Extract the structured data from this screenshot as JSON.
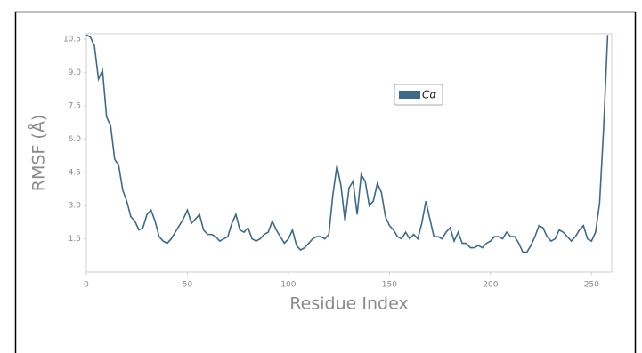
{
  "chart_data": {
    "type": "line",
    "xlabel": "Residue Index",
    "ylabel": "RMSF (Å)",
    "x": [
      0,
      2,
      4,
      6,
      8,
      10,
      12,
      14,
      16,
      18,
      20,
      22,
      24,
      26,
      28,
      30,
      32,
      34,
      36,
      38,
      40,
      42,
      44,
      46,
      48,
      50,
      52,
      54,
      56,
      58,
      60,
      62,
      64,
      66,
      68,
      70,
      72,
      74,
      76,
      78,
      80,
      82,
      84,
      86,
      88,
      90,
      92,
      94,
      96,
      98,
      100,
      102,
      104,
      106,
      108,
      110,
      112,
      114,
      116,
      118,
      120,
      122,
      124,
      126,
      128,
      130,
      132,
      134,
      136,
      138,
      140,
      142,
      144,
      146,
      148,
      150,
      152,
      154,
      156,
      158,
      160,
      162,
      164,
      166,
      168,
      170,
      172,
      174,
      176,
      178,
      180,
      182,
      184,
      186,
      188,
      190,
      192,
      194,
      196,
      198,
      200,
      202,
      204,
      206,
      208,
      210,
      212,
      214,
      216,
      218,
      220,
      222,
      224,
      226,
      228,
      230,
      232,
      234,
      236,
      238,
      240,
      242,
      244,
      246,
      248,
      250,
      252,
      254,
      256,
      258
    ],
    "series": [
      {
        "name": "Cα",
        "color": "#3d6a8a",
        "values": [
          10.7,
          10.6,
          10.2,
          8.7,
          9.1,
          7.0,
          6.6,
          5.1,
          4.8,
          3.7,
          3.2,
          2.5,
          2.3,
          1.9,
          2.0,
          2.6,
          2.8,
          2.3,
          1.6,
          1.4,
          1.3,
          1.5,
          1.8,
          2.1,
          2.4,
          2.8,
          2.2,
          2.4,
          2.6,
          1.9,
          1.7,
          1.7,
          1.6,
          1.4,
          1.5,
          1.6,
          2.2,
          2.6,
          1.9,
          1.8,
          2.0,
          1.5,
          1.4,
          1.5,
          1.7,
          1.8,
          2.3,
          1.9,
          1.6,
          1.3,
          1.5,
          1.9,
          1.2,
          1.0,
          1.1,
          1.3,
          1.5,
          1.6,
          1.6,
          1.5,
          1.7,
          3.5,
          4.8,
          3.9,
          2.3,
          3.8,
          4.1,
          2.6,
          4.4,
          4.1,
          3.0,
          3.2,
          4.0,
          3.6,
          2.5,
          2.1,
          1.9,
          1.6,
          1.5,
          1.8,
          1.5,
          1.7,
          1.5,
          2.2,
          3.2,
          2.4,
          1.6,
          1.6,
          1.5,
          1.8,
          2.0,
          1.4,
          1.8,
          1.3,
          1.3,
          1.1,
          1.1,
          1.2,
          1.1,
          1.3,
          1.4,
          1.6,
          1.6,
          1.5,
          1.8,
          1.6,
          1.6,
          1.3,
          0.9,
          0.9,
          1.2,
          1.6,
          2.1,
          2.0,
          1.6,
          1.4,
          1.5,
          1.9,
          1.8,
          1.6,
          1.4,
          1.6,
          1.9,
          2.1,
          1.5,
          1.4,
          1.8,
          3.1,
          6.5,
          10.7
        ]
      }
    ],
    "xlim": [
      0,
      260
    ],
    "xticks": [
      0,
      50,
      100,
      150,
      200,
      250
    ],
    "ylim": [
      0,
      10.75
    ],
    "yticks": [
      1.5,
      {
        "value": 3,
        "label": "3.0"
      },
      4.5,
      {
        "value": 6,
        "label": "6.0"
      },
      7.5,
      {
        "value": 9,
        "label": "9.0"
      },
      10.5
    ],
    "grid": false
  }
}
